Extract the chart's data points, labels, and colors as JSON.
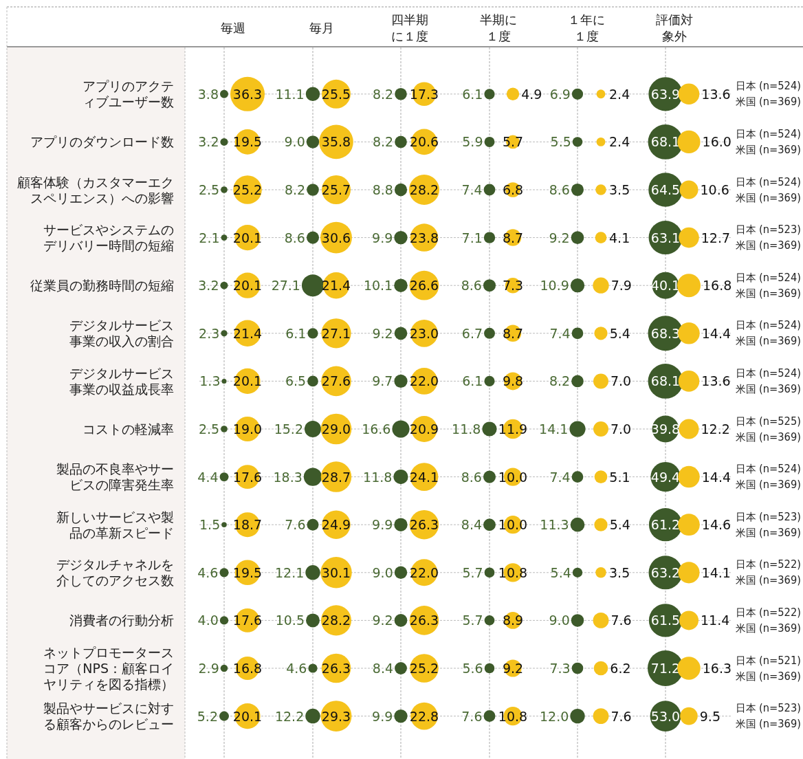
{
  "chart_data": {
    "type": "other",
    "annotations": [
      "毎週",
      "毎月",
      "四半期に１度",
      "半期に１度",
      "１年に１度",
      "評価対象外"
    ],
    "categories": [
      "アプリのアクティブユーザー数",
      "アプリのダウンロード数",
      "顧客体験（カスタマーエクスペリエンス）への影響",
      "サービスやシステムのデリバリー時間の短縮",
      "従業員の勤務時間の短縮",
      "デジタルサービス事業の収入の割合",
      "デジタルサービス事業の収益成長率",
      "コストの軽減率",
      "製品の不良率やサービスの障害発生率",
      "新しいサービスや製品の革新スピード",
      "デジタルチャネルを介してのアクセス数",
      "消費者の行動分析",
      "ネットプロモータースコア（NPS：顧客ロイヤリティを図る指標）",
      "製品やサービスに対する顧客からのレビュー"
    ],
    "y2_categories": [
      [
        "日本 (n=524)",
        "米国 (n=369)"
      ],
      [
        "日本 (n=524)",
        "米国 (n=369)"
      ],
      [
        "日本 (n=524)",
        "米国 (n=369)"
      ],
      [
        "日本 (n=523)",
        "米国 (n=369)"
      ],
      [
        "日本 (n=524)",
        "米国 (n=369)"
      ],
      [
        "日本 (n=524)",
        "米国 (n=369)"
      ],
      [
        "日本 (n=524)",
        "米国 (n=369)"
      ],
      [
        "日本 (n=525)",
        "米国 (n=369)"
      ],
      [
        "日本 (n=524)",
        "米国 (n=369)"
      ],
      [
        "日本 (n=523)",
        "米国 (n=369)"
      ],
      [
        "日本 (n=522)",
        "米国 (n=369)"
      ],
      [
        "日本 (n=522)",
        "米国 (n=369)"
      ],
      [
        "日本 (n=521)",
        "米国 (n=369)"
      ],
      [
        "日本 (n=523)",
        "米国 (n=369)"
      ]
    ],
    "series": [
      {
        "color": "#3d5a2a",
        "values": [
          3.8,
          3.2,
          2.5,
          2.1,
          3.2,
          2.3,
          1.3,
          2.5,
          4.4,
          1.5,
          4.6,
          4.0,
          2.9,
          5.2
        ],
        "value_labels": [
          "3.8",
          "3.2",
          "2.5",
          "2.1",
          "3.2",
          "2.3",
          "1.3",
          "2.5",
          "4.4",
          "1.5",
          "4.6",
          "4.0",
          "2.9",
          "5.2"
        ]
      },
      {
        "color": "#f5c21b",
        "values": [
          36.3,
          19.5,
          25.2,
          20.1,
          20.1,
          21.4,
          20.1,
          19.0,
          17.6,
          18.7,
          19.5,
          17.6,
          16.8,
          20.1
        ],
        "value_labels": [
          "36.3",
          "19.5",
          "25.2",
          "20.1",
          "20.1",
          "21.4",
          "20.1",
          "19.0",
          "17.6",
          "18.7",
          "19.5",
          "17.6",
          "16.8",
          "20.1"
        ]
      },
      {
        "color": "#3d5a2a",
        "values": [
          11.1,
          9.0,
          8.2,
          8.6,
          27.1,
          6.1,
          6.5,
          15.2,
          18.3,
          7.6,
          12.1,
          10.5,
          4.6,
          12.2
        ],
        "value_labels": [
          "11.1",
          "9.0",
          "8.2",
          "8.6",
          "27.1",
          "6.1",
          "6.5",
          "15.2",
          "18.3",
          "7.6",
          "12.1",
          "10.5",
          "4.6",
          "12.2"
        ]
      },
      {
        "color": "#f5c21b",
        "values": [
          25.5,
          35.8,
          25.7,
          30.6,
          21.4,
          27.1,
          27.6,
          29.0,
          28.7,
          24.9,
          30.1,
          28.2,
          26.3,
          29.3
        ],
        "value_labels": [
          "25.5",
          "35.8",
          "25.7",
          "30.6",
          "21.4",
          "27.1",
          "27.6",
          "29.0",
          "28.7",
          "24.9",
          "30.1",
          "28.2",
          "26.3",
          "29.3"
        ]
      },
      {
        "color": "#3d5a2a",
        "values": [
          8.2,
          8.2,
          8.8,
          9.9,
          10.1,
          9.2,
          9.7,
          16.6,
          11.8,
          9.9,
          9.0,
          9.2,
          8.4,
          9.9
        ],
        "value_labels": [
          "8.2",
          "8.2",
          "8.8",
          "9.9",
          "10.1",
          "9.2",
          "9.7",
          "16.6",
          "11.8",
          "9.9",
          "9.0",
          "9.2",
          "8.4",
          "9.9"
        ]
      },
      {
        "color": "#f5c21b",
        "values": [
          17.3,
          20.6,
          28.2,
          23.8,
          26.6,
          23.0,
          22.0,
          20.9,
          24.1,
          26.3,
          22.0,
          26.3,
          25.2,
          22.8
        ],
        "value_labels": [
          "17.3",
          "20.6",
          "28.2",
          "23.8",
          "26.6",
          "23.0",
          "22.0",
          "20.9",
          "24.1",
          "26.3",
          "22.0",
          "26.3",
          "25.2",
          "22.8"
        ]
      },
      {
        "color": "#3d5a2a",
        "values": [
          6.1,
          5.9,
          7.4,
          7.1,
          8.6,
          6.7,
          6.1,
          11.8,
          8.6,
          8.4,
          5.7,
          5.7,
          5.6,
          7.6
        ],
        "value_labels": [
          "6.1",
          "5.9",
          "7.4",
          "7.1",
          "8.6",
          "6.7",
          "6.1",
          "11.8",
          "8.6",
          "8.4",
          "5.7",
          "5.7",
          "5.6",
          "7.6"
        ]
      },
      {
        "color": "#f5c21b",
        "values": [
          4.9,
          5.7,
          6.8,
          8.7,
          7.3,
          8.7,
          9.8,
          11.9,
          10.0,
          10.0,
          10.8,
          8.9,
          9.2,
          10.8
        ],
        "value_labels": [
          "4.9",
          "5.7",
          "6.8",
          "8.7",
          "7.3",
          "8.7",
          "9.8",
          "11.9",
          "10.0",
          "10.0",
          "10.8",
          "8.9",
          "9.2",
          "10.8"
        ]
      },
      {
        "color": "#3d5a2a",
        "values": [
          6.9,
          5.5,
          8.6,
          9.2,
          10.9,
          7.4,
          8.2,
          14.1,
          7.4,
          11.3,
          5.4,
          9.0,
          7.3,
          12.0
        ],
        "value_labels": [
          "6.9",
          "5.5",
          "8.6",
          "9.2",
          "10.9",
          "7.4",
          "8.2",
          "14.1",
          "7.4",
          "11.3",
          "5.4",
          "9.0",
          "7.3",
          "12.0"
        ]
      },
      {
        "color": "#f5c21b",
        "values": [
          2.4,
          2.4,
          3.5,
          4.1,
          7.9,
          5.4,
          7.0,
          7.0,
          5.1,
          5.4,
          3.5,
          7.6,
          6.2,
          7.6
        ],
        "value_labels": [
          "2.4",
          "2.4",
          "3.5",
          "4.1",
          "7.9",
          "5.4",
          "7.0",
          "7.0",
          "5.1",
          "5.4",
          "3.5",
          "7.6",
          "6.2",
          "7.6"
        ]
      },
      {
        "color": "#3d5a2a",
        "values": [
          63.9,
          68.1,
          64.5,
          63.1,
          40.1,
          68.3,
          68.1,
          39.8,
          49.4,
          61.2,
          63.2,
          61.5,
          71.2,
          53.0
        ],
        "value_labels": [
          "63.9",
          "68.1",
          "64.5",
          "63.1",
          "40.1",
          "68.3",
          "68.1",
          "39.8",
          "49.4",
          "61.2",
          "63.2",
          "61.5",
          "71.2",
          "53.0"
        ]
      },
      {
        "color": "#f5c21b",
        "values": [
          13.6,
          16.0,
          10.6,
          12.7,
          16.8,
          14.4,
          13.6,
          12.2,
          14.4,
          14.6,
          14.1,
          11.4,
          16.3,
          9.5
        ],
        "value_labels": [
          "13.6",
          "16.0",
          "10.6",
          "12.7",
          "16.8",
          "14.4",
          "13.6",
          "12.2",
          "14.4",
          "14.6",
          "14.1",
          "11.4",
          "16.3",
          "9.5"
        ]
      }
    ]
  }
}
